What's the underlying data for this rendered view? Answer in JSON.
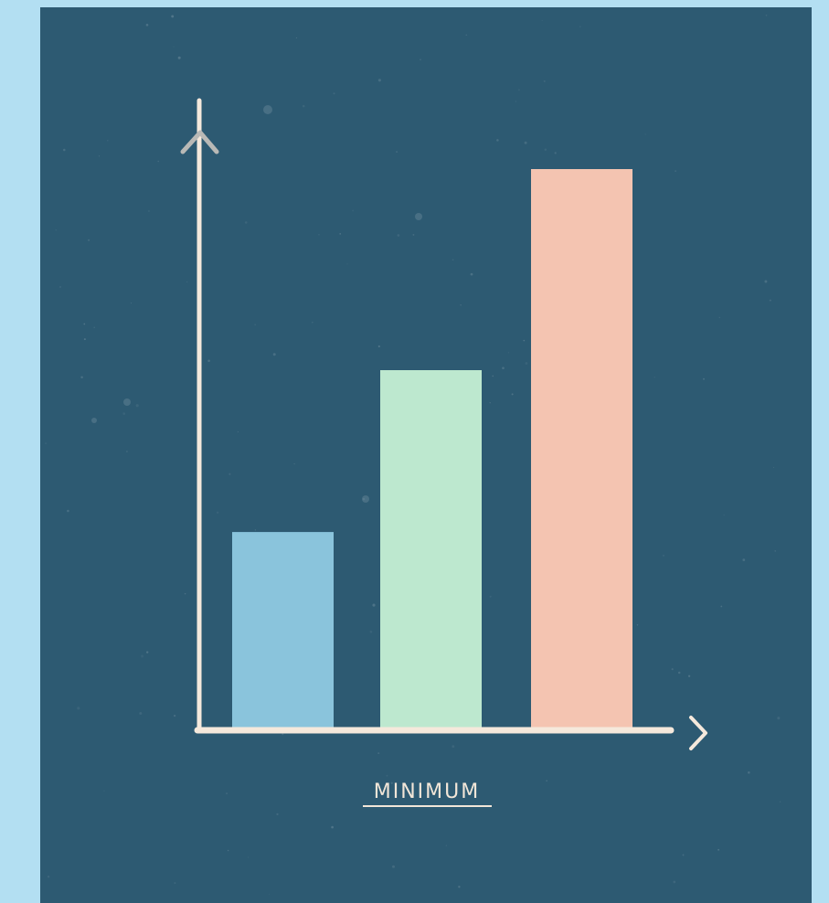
{
  "page": {
    "background_color": "#b3dff2",
    "panel_color": "#2d5a72",
    "axis_color": "#f5e9dc",
    "y_arrow_color": "#b9b9b6",
    "label_color": "#f2e6d8"
  },
  "chart_data": {
    "type": "bar",
    "title": "",
    "xlabel": "MINIMUM",
    "ylabel": "",
    "categories": [
      "",
      "",
      ""
    ],
    "values": [
      35,
      64,
      100
    ],
    "ylim": [
      0,
      100
    ],
    "grid": false,
    "legend": "none",
    "colors": [
      "#8ac4dc",
      "#bde8cf",
      "#f4c4b1"
    ],
    "y_axis_arrow": "up",
    "x_axis_arrow": "right",
    "xlabel_underlined": true
  }
}
